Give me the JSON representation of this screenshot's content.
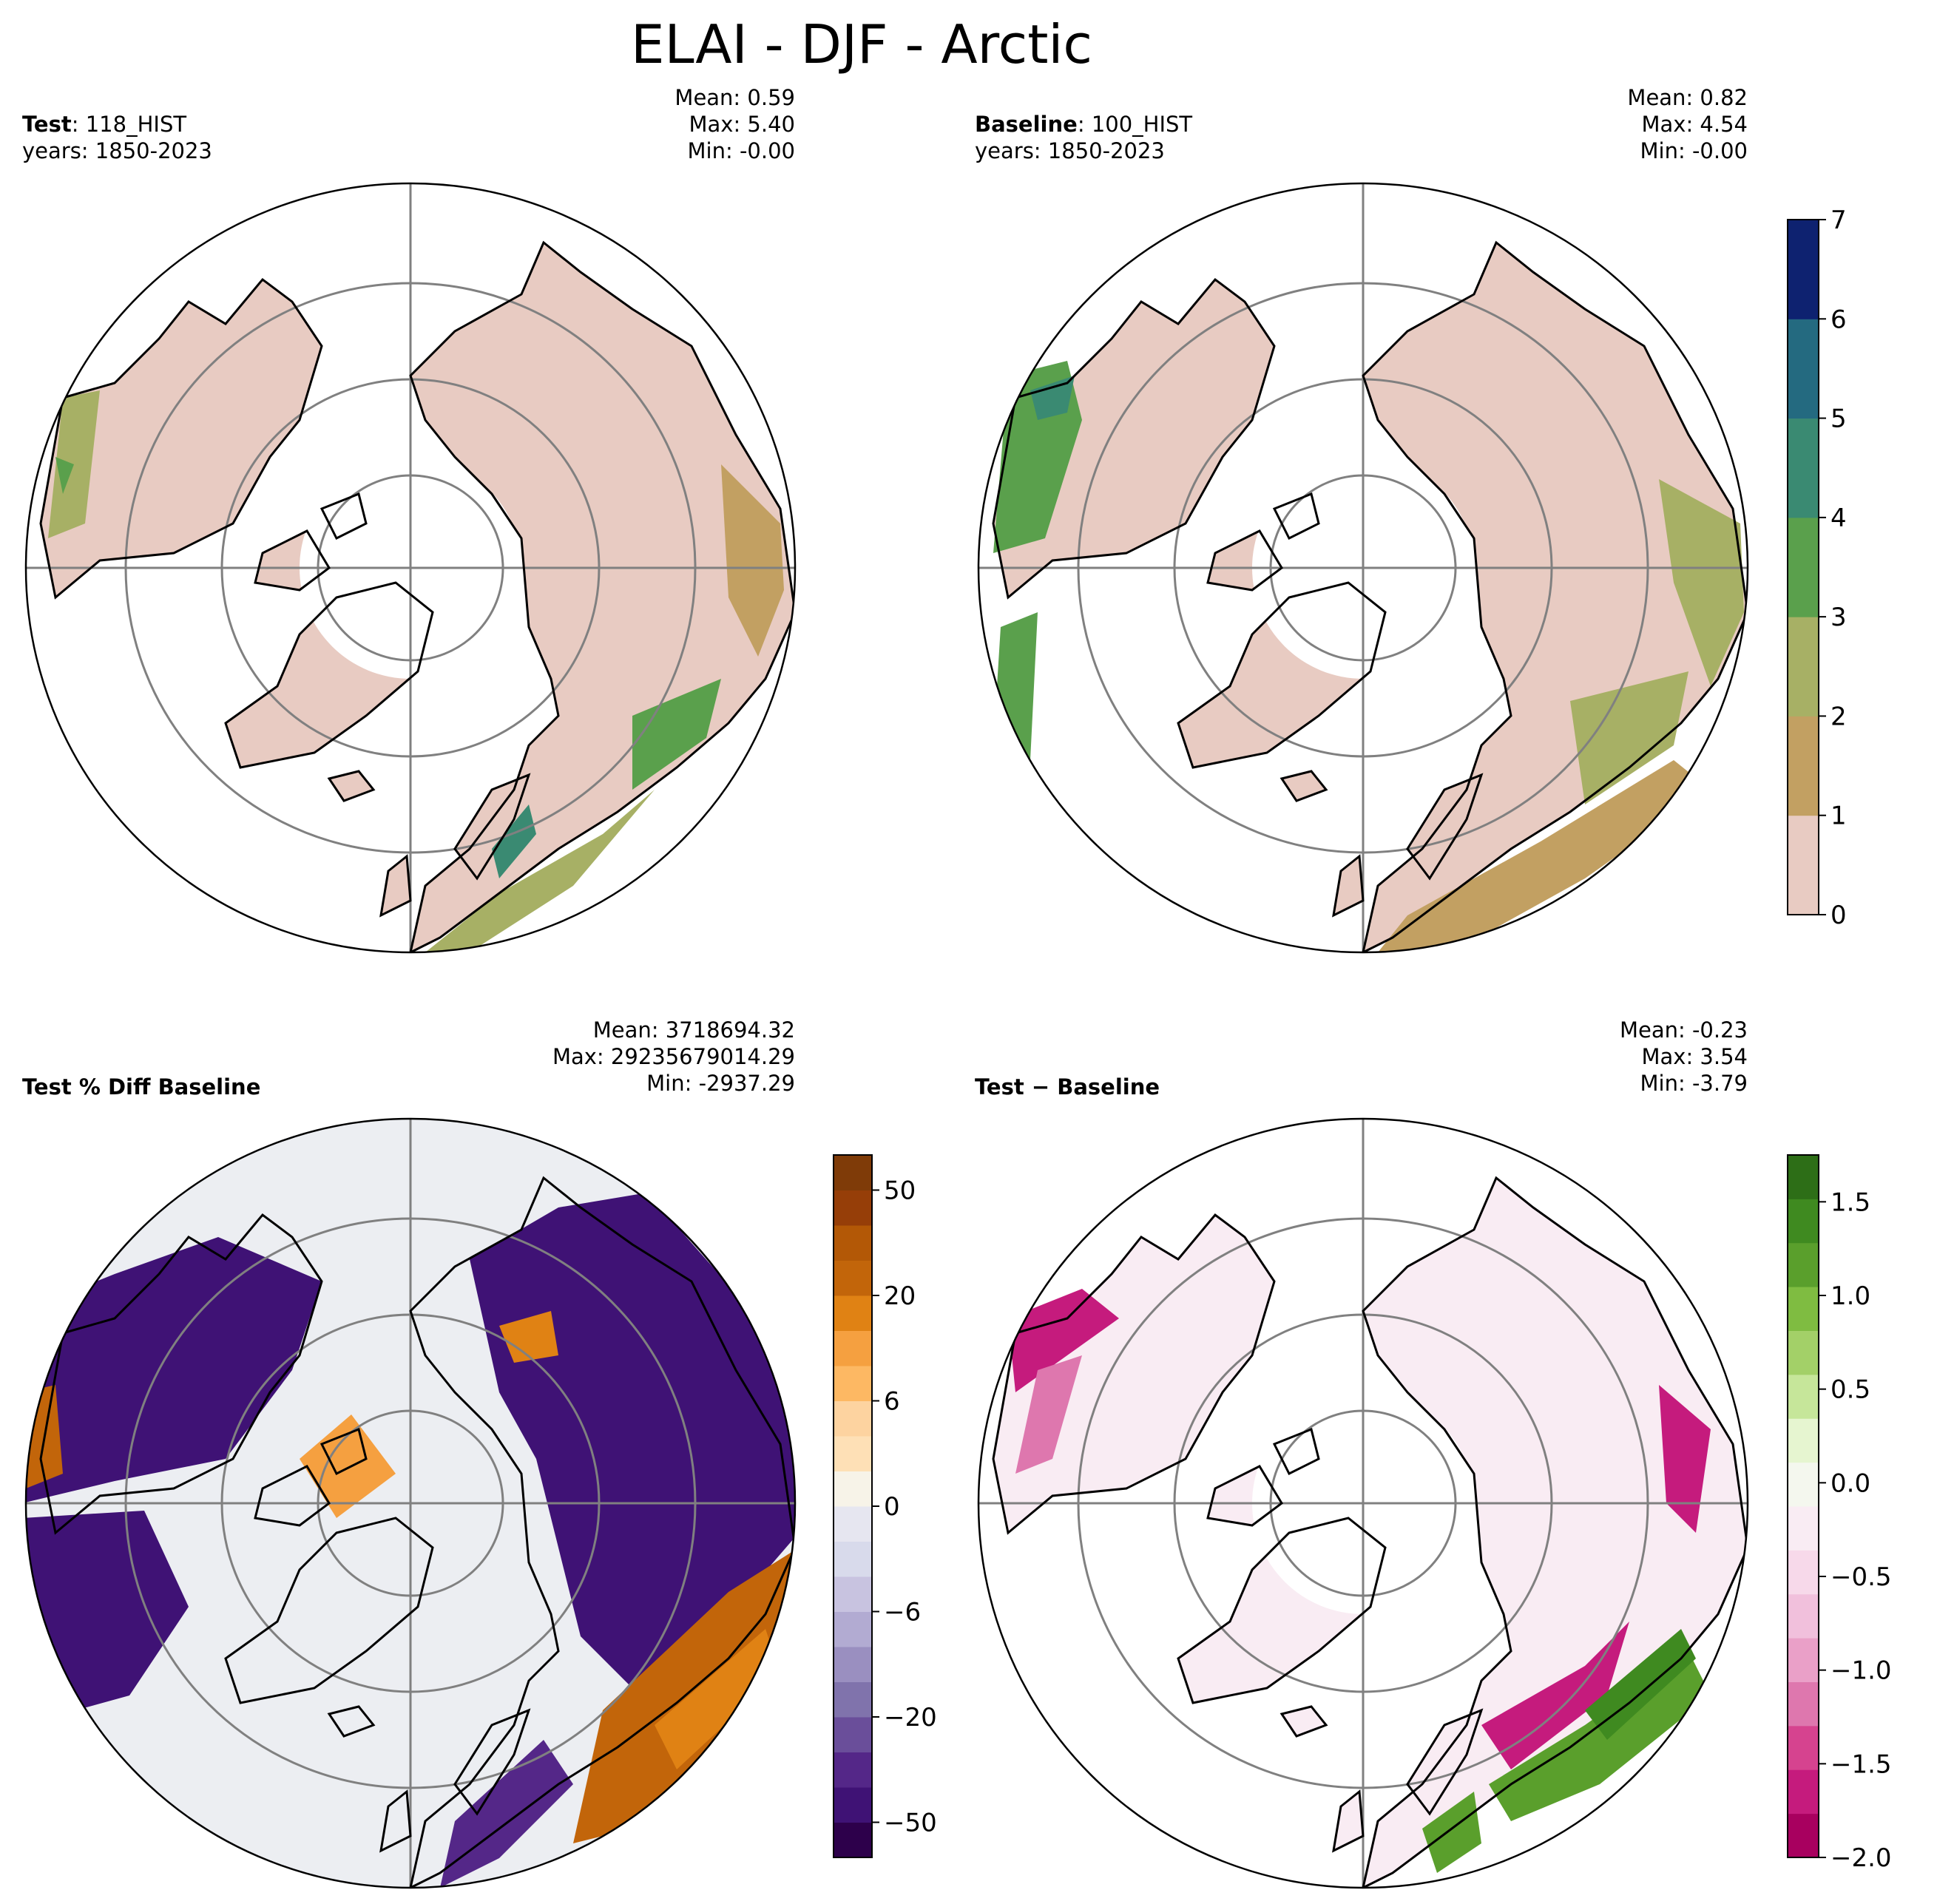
{
  "title": "ELAI - DJF - Arctic",
  "panels": [
    {
      "id": "test",
      "label_bold": "Test",
      "label_sep": ": ",
      "label_value": "118_HIST",
      "years": "years: 1850-2023",
      "mean": "Mean:  0.59",
      "max": "Max:  5.40",
      "min": "Min: -0.00"
    },
    {
      "id": "baseline",
      "label_bold": "Baseline",
      "label_sep": ": ",
      "label_value": "100_HIST",
      "years": "years: 1850-2023",
      "mean": "Mean:  0.82",
      "max": "Max:  4.54",
      "min": "Min: -0.00"
    },
    {
      "id": "pctdiff",
      "label_bold": "Test % Diff Baseline",
      "mean": "Mean: 3718694.32",
      "max": "Max: 29235679014.29",
      "min": "Min: -2937.29"
    },
    {
      "id": "diff",
      "label_bold": "Test − Baseline",
      "mean": "Mean: -0.23",
      "max": "Max:  3.54",
      "min": "Min: -3.79"
    }
  ],
  "colorbars": {
    "elai": {
      "ticks": [
        "0",
        "1",
        "2",
        "3",
        "4",
        "5",
        "6",
        "7"
      ],
      "colors": [
        "#e8cbc2",
        "#c2a062",
        "#a7b065",
        "#5aa04c",
        "#3a8a72",
        "#246a80",
        "#0e2270"
      ]
    },
    "pct": {
      "ticks": [
        "−50",
        "−20",
        "−6",
        "0",
        "6",
        "20",
        "50"
      ],
      "colors": [
        "#2d004b",
        "#3f1275",
        "#542788",
        "#6a4e9a",
        "#8073ac",
        "#9a8fc0",
        "#b2abd2",
        "#c8c3e0",
        "#d8daeb",
        "#e6e6f0",
        "#f7f3e8",
        "#fee0b6",
        "#fdd3a0",
        "#fdb863",
        "#f5a040",
        "#e08214",
        "#c2650a",
        "#b35806",
        "#963e08",
        "#7f3b08"
      ]
    },
    "diff": {
      "ticks": [
        "−2.0",
        "−1.5",
        "−1.0",
        "−0.5",
        "0.0",
        "0.5",
        "1.0",
        "1.5"
      ],
      "colors": [
        "#a8005f",
        "#c51b7d",
        "#d6438f",
        "#de77ae",
        "#eaa0c8",
        "#f1c0dc",
        "#f7d9ea",
        "#f9ecf3",
        "#f4f7ee",
        "#e6f5d0",
        "#c6e69a",
        "#a3d068",
        "#7fbc41",
        "#5a9f2c",
        "#3f8a20",
        "#2d6e17"
      ]
    }
  },
  "chart_data": [
    {
      "type": "heatmap",
      "title": "Test: 118_HIST",
      "subtitle": "years: 1850-2023",
      "projection": "north polar stereographic",
      "stats": {
        "mean": 0.59,
        "max": 5.4,
        "min": -0.0
      },
      "colorbar_range": [
        0,
        7
      ],
      "levels": [
        0,
        1,
        2,
        3,
        4,
        5,
        6,
        7
      ]
    },
    {
      "type": "heatmap",
      "title": "Baseline: 100_HIST",
      "subtitle": "years: 1850-2023",
      "projection": "north polar stereographic",
      "stats": {
        "mean": 0.82,
        "max": 4.54,
        "min": -0.0
      },
      "colorbar_range": [
        0,
        7
      ],
      "levels": [
        0,
        1,
        2,
        3,
        4,
        5,
        6,
        7
      ]
    },
    {
      "type": "heatmap",
      "title": "Test % Diff Baseline",
      "projection": "north polar stereographic",
      "stats": {
        "mean": 3718694.32,
        "max": 29235679014.29,
        "min": -2937.29
      },
      "colorbar_ticks": [
        -50,
        -20,
        -6,
        0,
        6,
        20,
        50
      ]
    },
    {
      "type": "heatmap",
      "title": "Test − Baseline",
      "projection": "north polar stereographic",
      "stats": {
        "mean": -0.23,
        "max": 3.54,
        "min": -3.79
      },
      "colorbar_range": [
        -2.0,
        1.75
      ],
      "colorbar_ticks": [
        -2.0,
        -1.5,
        -1.0,
        -0.5,
        0.0,
        0.5,
        1.0,
        1.5
      ]
    }
  ]
}
